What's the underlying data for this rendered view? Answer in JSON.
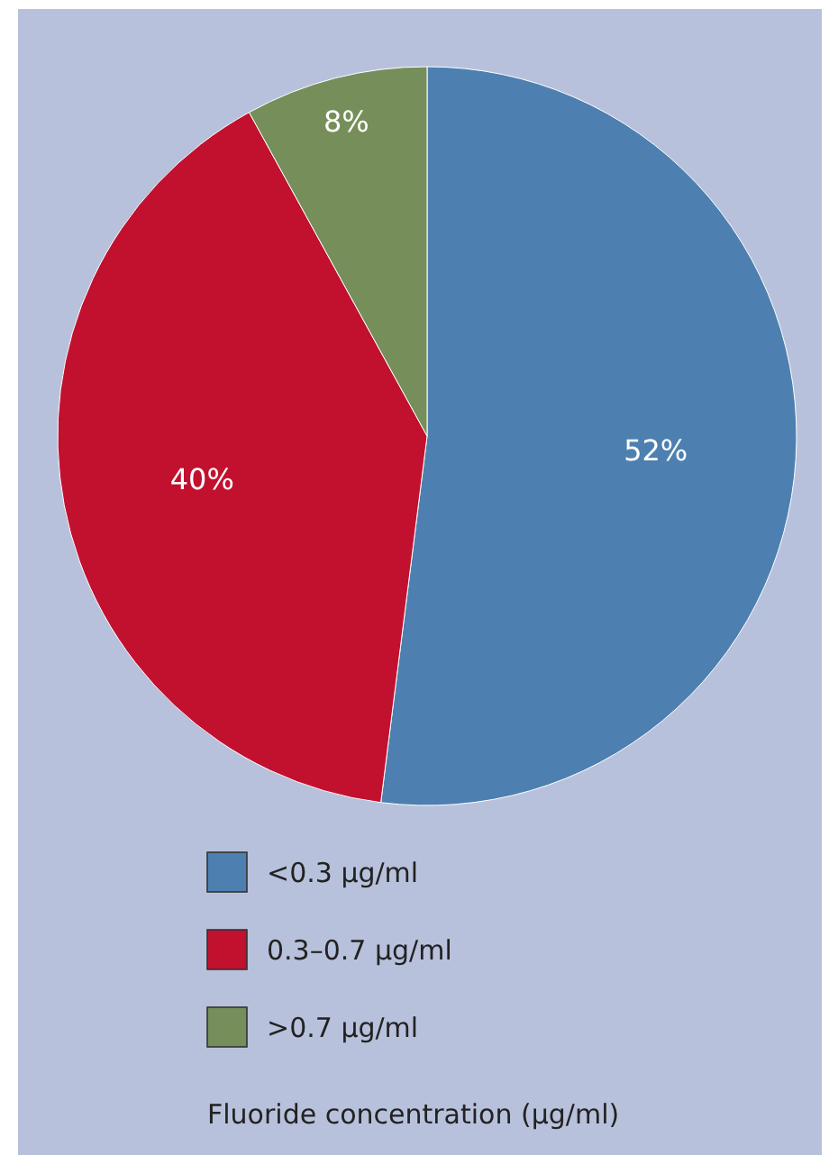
{
  "chart_data": {
    "type": "pie",
    "categories": [
      "<0.3 µg/ml",
      "0.3–0.7 µg/ml",
      ">0.7 µg/ml"
    ],
    "values": [
      52,
      40,
      8
    ],
    "colors": [
      "#4d80b0",
      "#c1112f",
      "#768f5a"
    ],
    "value_labels": [
      "52%",
      "40%",
      "8%"
    ],
    "legend": "bottom",
    "legend_title": "Fluoride concentration (µg/ml)"
  }
}
